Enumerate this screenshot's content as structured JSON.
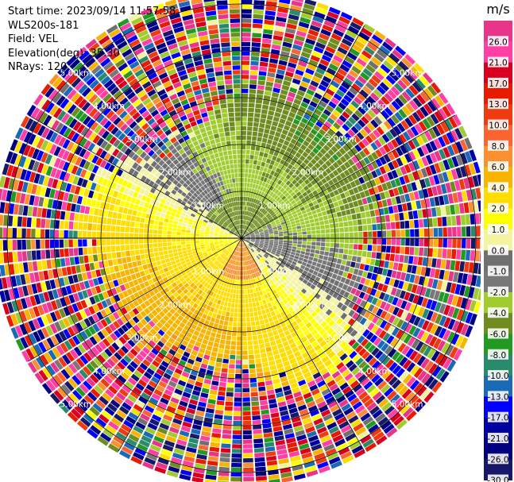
{
  "header": {
    "start_time": "Start time: 2023/09/14 11:57:58",
    "instrument": "WLS200s-181",
    "field": "Field: VEL",
    "elevation": "Elevation(deg): 35.30",
    "nrays": "NRays: 120"
  },
  "chart_data": {
    "type": "heatmap",
    "projection": "polar-ppi",
    "field": "VEL",
    "n_rays": 120,
    "elevation_deg": 35.3,
    "range_rings_km": [
      1.0,
      2.0,
      3.0,
      4.0,
      5.0
    ],
    "range_ring_labels": [
      "1.00km",
      "2.00km",
      "3.00km",
      "4.00km",
      "5.00km"
    ],
    "max_range_km": 5.0,
    "gate_spacing_km": 0.1,
    "colorbar": {
      "unit": "m/s",
      "tick_labels": [
        "26.0",
        "21.0",
        "17.0",
        "13.0",
        "10.0",
        "8.0",
        "6.0",
        "4.0",
        "2.0",
        "1.0",
        "0.0",
        "-1.0",
        "-2.0",
        "-4.0",
        "-6.0",
        "-8.0",
        "-10.0",
        "-13.0",
        "-17.0",
        "-21.0",
        "-26.0",
        "-30.0"
      ],
      "boundaries": [
        30,
        26,
        21,
        17,
        13,
        10,
        8,
        6,
        4,
        2,
        1,
        0,
        -1,
        -2,
        -4,
        -6,
        -8,
        -10,
        -13,
        -17,
        -21,
        -26,
        -30
      ],
      "colors": [
        "#e8358a",
        "#ff3fa4",
        "#d8001e",
        "#e81a00",
        "#f03a10",
        "#fb6430",
        "#fb9030",
        "#f8b400",
        "#ffdd00",
        "#ffff00",
        "#f4f4a0",
        "#707070",
        "#787878",
        "#a0cc30",
        "#6e8c20",
        "#229922",
        "#2a8a6c",
        "#1a6ab8",
        "#0000ff",
        "#0000a0",
        "#000080",
        "#18186a"
      ]
    }
  }
}
